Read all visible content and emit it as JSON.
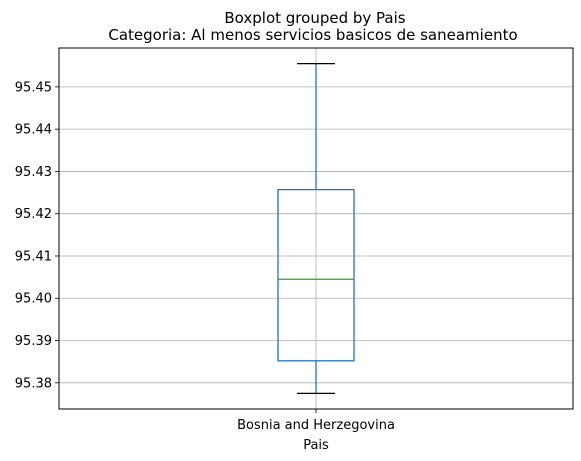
{
  "chart_data": {
    "type": "box",
    "suptitle": "Boxplot grouped by Pais",
    "title": "Categoria: Al menos servicios basicos de saneamiento",
    "xlabel": "Pais",
    "ylabel": "",
    "categories": [
      "Bosnia and Herzegovina"
    ],
    "boxes": [
      {
        "category": "Bosnia and Herzegovina",
        "whisker_low": 95.3775,
        "q1": 95.3852,
        "median": 95.4045,
        "q3": 95.4257,
        "whisker_high": 95.4555
      }
    ],
    "ylim": [
      95.3738,
      95.4592
    ],
    "yticks": [
      95.38,
      95.39,
      95.4,
      95.41,
      95.42,
      95.43,
      95.44,
      95.45
    ],
    "ytick_labels": [
      "95.38",
      "95.39",
      "95.40",
      "95.41",
      "95.42",
      "95.43",
      "95.44",
      "95.45"
    ],
    "grid": true,
    "colors": {
      "box": "#1f77b4",
      "median": "#2ca02c",
      "caps": "#000000",
      "grid": "#b0b0b0"
    }
  }
}
